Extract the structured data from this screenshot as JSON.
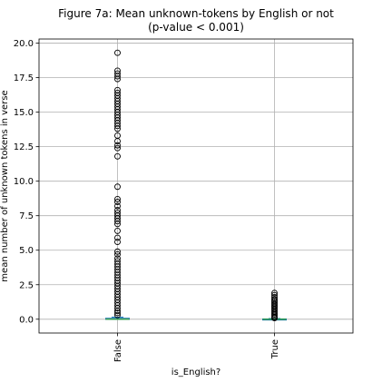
{
  "chart_data": {
    "type": "box",
    "title_line1": "Figure 7a: Mean unknown-tokens by English or not",
    "title_line2": "(p-value < 0.001)",
    "xlabel": "is_English?",
    "ylabel": "mean number of unknown tokens in verse",
    "categories": [
      "False",
      "True"
    ],
    "ylim": [
      -1.0,
      20.3
    ],
    "yticks": [
      0.0,
      2.5,
      5.0,
      7.5,
      10.0,
      12.5,
      15.0,
      17.5,
      20.0
    ],
    "ytick_labels": [
      "0.0",
      "2.5",
      "5.0",
      "7.5",
      "10.0",
      "12.5",
      "15.0",
      "17.5",
      "20.0"
    ],
    "grid": true,
    "boxes": [
      {
        "category": "False",
        "q1": 0.0,
        "median": 0.0,
        "q3": 0.07,
        "whisker_low": 0.0,
        "whisker_high": 0.15,
        "outliers": [
          19.3,
          18.0,
          17.8,
          17.6,
          17.4,
          16.6,
          16.4,
          16.2,
          16.0,
          15.8,
          15.6,
          15.4,
          15.2,
          15.0,
          14.8,
          14.6,
          14.4,
          14.2,
          14.0,
          13.8,
          13.3,
          12.9,
          12.6,
          12.4,
          11.8,
          9.6,
          8.7,
          8.5,
          8.2,
          7.9,
          7.7,
          7.5,
          7.3,
          7.1,
          6.9,
          6.4,
          5.9,
          5.6,
          4.9,
          4.7,
          4.4,
          4.2,
          4.0,
          3.8,
          3.6,
          3.4,
          3.2,
          3.0,
          2.8,
          2.6,
          2.4,
          2.2,
          2.0,
          1.8,
          1.6,
          1.4,
          1.2,
          1.0,
          0.8,
          0.6,
          0.45,
          0.3
        ]
      },
      {
        "category": "True",
        "q1": 0.0,
        "median": 0.0,
        "q3": 0.02,
        "whisker_low": 0.0,
        "whisker_high": 0.05,
        "outliers": [
          1.9,
          1.75,
          1.6,
          1.45,
          1.35,
          1.25,
          1.15,
          1.05,
          0.95,
          0.85,
          0.75,
          0.65,
          0.55,
          0.45,
          0.35,
          0.25,
          0.15,
          0.08
        ]
      }
    ],
    "colors": {
      "box": "#1f77b4",
      "median": "#2ca02c",
      "grid": "#b0b0b0",
      "outlier_edge": "#000000"
    }
  }
}
